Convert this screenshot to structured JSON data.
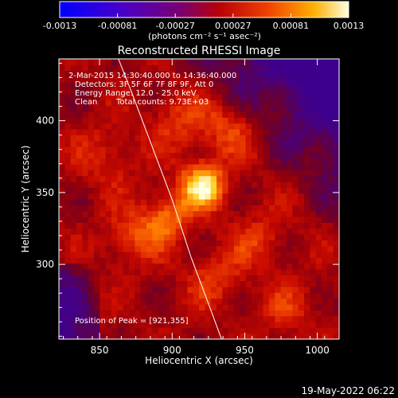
{
  "chart_data": {
    "type": "heatmap",
    "title": "Reconstructed RHESSI Image",
    "xlabel": "Heliocentric X (arcsec)",
    "ylabel": "Heliocentric Y (arcsec)",
    "xlim": [
      822,
      1015
    ],
    "ylim": [
      248,
      443
    ],
    "x_ticks": [
      850,
      900,
      950,
      1000
    ],
    "y_ticks": [
      300,
      350,
      400
    ],
    "colorbar": {
      "range": [
        -0.0013,
        0.0013
      ],
      "ticks": [
        "-0.0013",
        "-0.00081",
        "-0.00027",
        "0.00027",
        "0.00081",
        "0.0013"
      ],
      "units": "(photons cm⁻² s⁻¹ asec⁻²)"
    },
    "annotations": {
      "time": "2-Mar-2015 14:30:40.000 to 14:36:40.000",
      "detectors": "Detectors: 3F 5F 6F 7F 8F 9F, Att 0",
      "energy": "Energy Range: 12.0 - 25.0 keV",
      "clean": "Clean",
      "counts": "Total counts: 9.73E+03",
      "peak_label": "Position of Peak = [921,355]"
    },
    "peak": {
      "x": 921,
      "y": 355
    },
    "sources": [
      {
        "x": 921,
        "y": 355,
        "amp": 1.0,
        "sigma": 11
      },
      {
        "x": 896,
        "y": 333,
        "amp": 0.58,
        "sigma": 12
      },
      {
        "x": 872,
        "y": 318,
        "amp": 0.42,
        "sigma": 13
      },
      {
        "x": 940,
        "y": 395,
        "amp": 0.38,
        "sigma": 14
      },
      {
        "x": 905,
        "y": 400,
        "amp": 0.35,
        "sigma": 14
      },
      {
        "x": 960,
        "y": 318,
        "amp": 0.33,
        "sigma": 13
      },
      {
        "x": 930,
        "y": 290,
        "amp": 0.34,
        "sigma": 14
      },
      {
        "x": 855,
        "y": 375,
        "amp": 0.3,
        "sigma": 15
      },
      {
        "x": 980,
        "y": 270,
        "amp": 0.28,
        "sigma": 14
      }
    ],
    "limb": [
      [
        863,
        443
      ],
      [
        872,
        420
      ],
      [
        887,
        380
      ],
      [
        900,
        345
      ],
      [
        913,
        305
      ],
      [
        926,
        270
      ],
      [
        934,
        248
      ]
    ]
  },
  "footer": {
    "date": "19-May-2022 06:22"
  }
}
